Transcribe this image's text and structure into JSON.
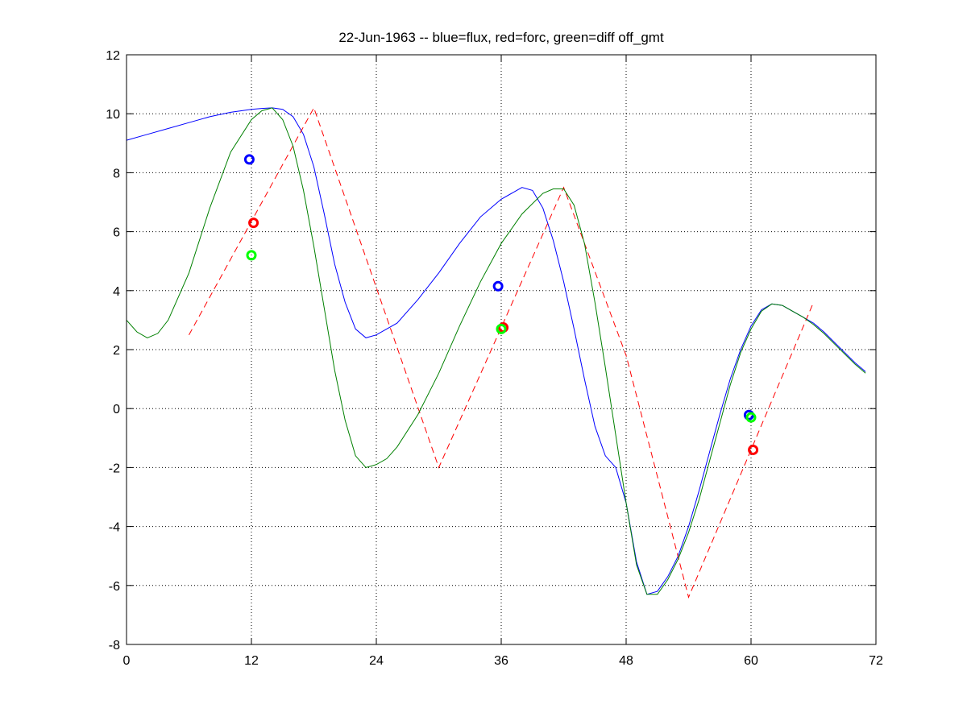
{
  "chart_data": {
    "type": "line",
    "title": "22-Jun-1963 -- blue=flux, red=forc, green=diff off_gmt",
    "xlabel": "",
    "ylabel": "",
    "xlim": [
      0,
      72
    ],
    "ylim": [
      -8,
      12
    ],
    "xticks": [
      0,
      12,
      24,
      36,
      48,
      60,
      72
    ],
    "yticks": [
      -8,
      -6,
      -4,
      -2,
      0,
      2,
      4,
      6,
      8,
      10,
      12
    ],
    "grid": true,
    "series": [
      {
        "color": "#0000ff",
        "style": "solid",
        "x": [
          0,
          2,
          4,
          6,
          8,
          10,
          12,
          13,
          14,
          15,
          16,
          17,
          18,
          19,
          20,
          21,
          22,
          23,
          24,
          26,
          28,
          30,
          32,
          34,
          36,
          38,
          39,
          40,
          41,
          42,
          43,
          44,
          45,
          46,
          47,
          48,
          49,
          50,
          51,
          52,
          53,
          54,
          55,
          56,
          57,
          58,
          59,
          60,
          61,
          62,
          63,
          64,
          65,
          66,
          67,
          68,
          69,
          70,
          71
        ],
        "y": [
          9.1,
          9.3,
          9.5,
          9.7,
          9.9,
          10.05,
          10.15,
          10.18,
          10.2,
          10.15,
          9.9,
          9.3,
          8.2,
          6.6,
          4.9,
          3.6,
          2.7,
          2.4,
          2.5,
          2.9,
          3.7,
          4.6,
          5.6,
          6.5,
          7.1,
          7.5,
          7.4,
          6.8,
          5.7,
          4.3,
          2.7,
          1.0,
          -0.6,
          -1.6,
          -2.0,
          -3.2,
          -5.2,
          -6.3,
          -6.2,
          -5.7,
          -5.0,
          -4.0,
          -2.8,
          -1.5,
          -0.2,
          1.0,
          2.0,
          2.8,
          3.35,
          3.55,
          3.5,
          3.3,
          3.1,
          2.9,
          2.6,
          2.25,
          1.9,
          1.55,
          1.25
        ]
      },
      {
        "color": "#ff0000",
        "style": "dashed",
        "x": [
          6,
          18,
          24,
          30,
          42,
          48,
          54,
          66
        ],
        "y": [
          2.5,
          10.2,
          4.1,
          -2.0,
          7.5,
          1.8,
          -6.4,
          3.6
        ]
      },
      {
        "color": "#008000",
        "style": "solid",
        "x": [
          0,
          1,
          2,
          3,
          4,
          6,
          8,
          10,
          12,
          13,
          14,
          15,
          16,
          17,
          18,
          19,
          20,
          21,
          22,
          23,
          24,
          25,
          26,
          28,
          30,
          32,
          34,
          36,
          38,
          40,
          41,
          42,
          43,
          44,
          45,
          46,
          47,
          48,
          49,
          50,
          51,
          52,
          53,
          54,
          55,
          56,
          57,
          58,
          59,
          60,
          61,
          62,
          63,
          64,
          65,
          66,
          67,
          68,
          69,
          70,
          71
        ],
        "y": [
          3.0,
          2.6,
          2.4,
          2.55,
          3.0,
          4.6,
          6.8,
          8.7,
          9.8,
          10.1,
          10.2,
          9.8,
          8.9,
          7.4,
          5.5,
          3.4,
          1.3,
          -0.4,
          -1.6,
          -2.0,
          -1.9,
          -1.7,
          -1.3,
          -0.2,
          1.2,
          2.8,
          4.3,
          5.6,
          6.6,
          7.3,
          7.45,
          7.45,
          6.9,
          5.6,
          3.6,
          1.4,
          -0.9,
          -3.2,
          -5.3,
          -6.3,
          -6.3,
          -5.8,
          -5.1,
          -4.2,
          -3.1,
          -1.8,
          -0.5,
          0.8,
          1.9,
          2.7,
          3.3,
          3.55,
          3.5,
          3.3,
          3.1,
          2.85,
          2.55,
          2.2,
          1.85,
          1.5,
          1.2
        ]
      }
    ],
    "markers": [
      {
        "color": "#0000ff",
        "x": 11.8,
        "y": 8.45
      },
      {
        "color": "#ff0000",
        "x": 12.2,
        "y": 6.3
      },
      {
        "color": "#00ff00",
        "x": 12.0,
        "y": 5.2
      },
      {
        "color": "#0000ff",
        "x": 35.7,
        "y": 4.15
      },
      {
        "color": "#ff0000",
        "x": 36.2,
        "y": 2.75
      },
      {
        "color": "#00ff00",
        "x": 36.0,
        "y": 2.7
      },
      {
        "color": "#0000ff",
        "x": 59.8,
        "y": -0.22
      },
      {
        "color": "#ff0000",
        "x": 60.2,
        "y": -1.4
      },
      {
        "color": "#00ff00",
        "x": 60.0,
        "y": -0.3
      }
    ]
  }
}
